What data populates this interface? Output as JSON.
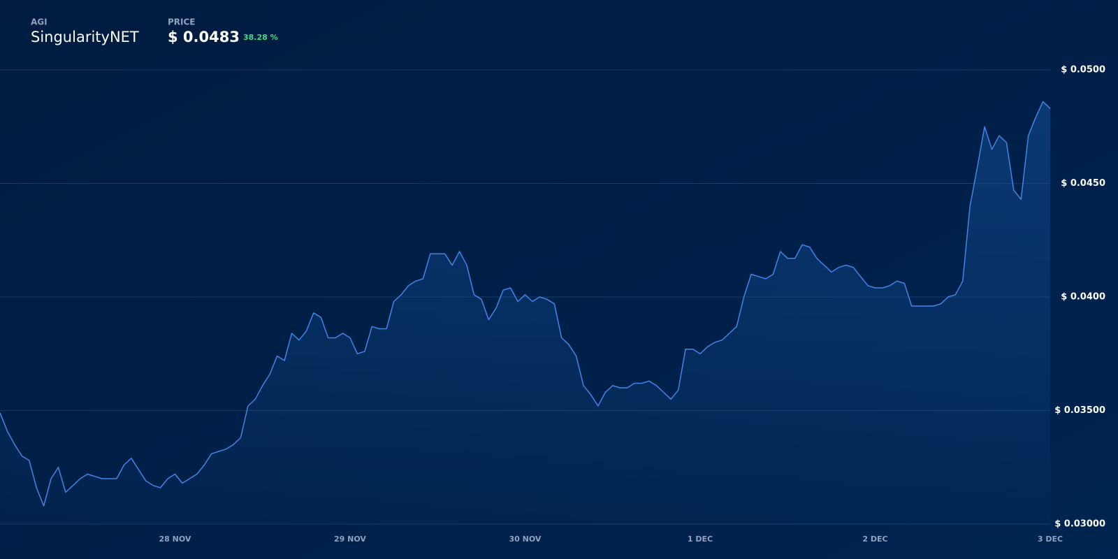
{
  "chart_data": {
    "type": "line",
    "symbol": "AGI",
    "name": "SingularityNET",
    "price_caption": "PRICE",
    "price": "$ 0.0483",
    "change": "38.28 %",
    "color": "#3f86ea",
    "grid": true,
    "ylim": [
      0.03,
      0.05
    ],
    "yticks": [
      {
        "value": 0.03,
        "label": "$ 0.03000"
      },
      {
        "value": 0.035,
        "label": "$ 0.03500"
      },
      {
        "value": 0.04,
        "label": "$ 0.0400"
      },
      {
        "value": 0.045,
        "label": "$ 0.0450"
      },
      {
        "value": 0.05,
        "label": "$ 0.0500"
      }
    ],
    "categories": [
      null,
      null,
      null,
      null,
      null,
      null,
      null,
      null,
      null,
      null,
      null,
      null,
      null,
      null,
      null,
      null,
      null,
      null,
      null,
      null,
      null,
      null,
      null,
      null,
      "28 NOV",
      null,
      null,
      null,
      null,
      null,
      null,
      null,
      null,
      null,
      null,
      null,
      null,
      null,
      null,
      null,
      null,
      null,
      null,
      null,
      null,
      null,
      null,
      null,
      "29 NOV",
      null,
      null,
      null,
      null,
      null,
      null,
      null,
      null,
      null,
      null,
      null,
      null,
      null,
      null,
      null,
      null,
      null,
      null,
      null,
      null,
      null,
      null,
      null,
      "30 NOV",
      null,
      null,
      null,
      null,
      null,
      null,
      null,
      null,
      null,
      null,
      null,
      null,
      null,
      null,
      null,
      null,
      null,
      null,
      null,
      null,
      null,
      null,
      null,
      "1 DEC",
      null,
      null,
      null,
      null,
      null,
      null,
      null,
      null,
      null,
      null,
      null,
      null,
      null,
      null,
      null,
      null,
      null,
      null,
      null,
      null,
      null,
      null,
      null,
      "2 DEC",
      null,
      null,
      null,
      null,
      null,
      null,
      null,
      null,
      null,
      null,
      null,
      null,
      null,
      null,
      null,
      null,
      null,
      null,
      null,
      null,
      null,
      null,
      null,
      "3 DEC"
    ],
    "values": [
      0.0349,
      0.0341,
      0.0335,
      0.033,
      0.0328,
      0.0316,
      0.0308,
      0.032,
      0.0325,
      0.0314,
      0.0317,
      0.032,
      0.0322,
      0.0321,
      0.032,
      0.032,
      0.032,
      0.0326,
      0.0329,
      0.0324,
      0.0319,
      0.0317,
      0.0316,
      0.032,
      0.0322,
      0.0318,
      0.032,
      0.0322,
      0.0326,
      0.0331,
      0.0332,
      0.0333,
      0.0335,
      0.0338,
      0.0352,
      0.0355,
      0.0361,
      0.0366,
      0.0374,
      0.0372,
      0.0384,
      0.0381,
      0.0385,
      0.0393,
      0.0391,
      0.0382,
      0.0382,
      0.0384,
      0.0382,
      0.0375,
      0.0376,
      0.0387,
      0.0386,
      0.0386,
      0.0398,
      0.0401,
      0.0405,
      0.0407,
      0.0408,
      0.0419,
      0.0419,
      0.0419,
      0.0414,
      0.042,
      0.0414,
      0.0401,
      0.0399,
      0.039,
      0.0395,
      0.0403,
      0.0404,
      0.0398,
      0.0401,
      0.0398,
      0.04,
      0.0399,
      0.0397,
      0.0382,
      0.0379,
      0.0374,
      0.0361,
      0.0357,
      0.0352,
      0.0358,
      0.0361,
      0.036,
      0.036,
      0.0362,
      0.0362,
      0.0363,
      0.0361,
      0.0358,
      0.0355,
      0.0359,
      0.0377,
      0.0377,
      0.0375,
      0.0378,
      0.038,
      0.0381,
      0.0384,
      0.0387,
      0.04,
      0.041,
      0.0409,
      0.0408,
      0.041,
      0.042,
      0.0417,
      0.0417,
      0.0423,
      0.0422,
      0.0417,
      0.0414,
      0.0411,
      0.0413,
      0.0414,
      0.0413,
      0.0409,
      0.0405,
      0.0404,
      0.0404,
      0.0405,
      0.0407,
      0.0406,
      0.0396,
      0.0396,
      0.0396,
      0.0396,
      0.0397,
      0.04,
      0.0401,
      0.0407,
      0.044,
      0.0457,
      0.0475,
      0.0465,
      0.0471,
      0.0468,
      0.0447,
      0.0443,
      0.0471,
      0.0479,
      0.0486,
      0.0483
    ]
  }
}
